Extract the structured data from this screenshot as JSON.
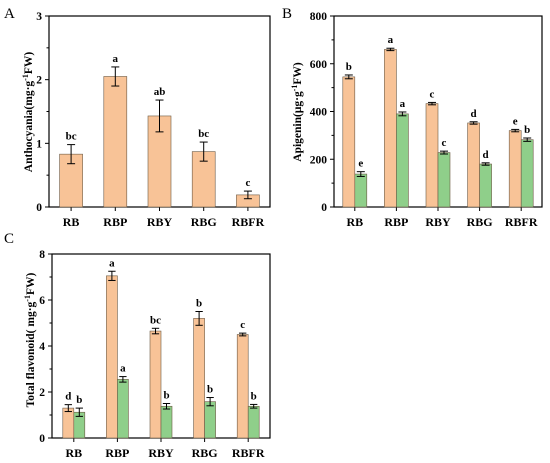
{
  "colors": {
    "series_a": "#f8c397",
    "series_b": "#8fcf8a",
    "bar_stroke": "#6d5a44",
    "axis": "#000000"
  },
  "chart_data": [
    {
      "panel": "A",
      "type": "bar",
      "categories": [
        "RB",
        "RBP",
        "RBY",
        "RBG",
        "RBFR"
      ],
      "ylabel_main": "Anthocyania(mg·g",
      "ylabel_sup": "-1",
      "ylabel_tail": "FW)",
      "ylim": [
        0,
        3
      ],
      "yticks": [
        "0",
        "1",
        "2",
        "3"
      ],
      "series": [
        {
          "values": [
            0.83,
            2.05,
            1.43,
            0.87,
            0.19
          ],
          "errors": [
            0.15,
            0.15,
            0.25,
            0.15,
            0.06
          ],
          "letters": [
            "bc",
            "a",
            "ab",
            "bc",
            "c"
          ]
        }
      ]
    },
    {
      "panel": "B",
      "type": "bar",
      "categories": [
        "RB",
        "RBP",
        "RBY",
        "RBG",
        "RBFR"
      ],
      "ylabel_main": "Apigenin(μg·g",
      "ylabel_sup": "-1",
      "ylabel_tail": "FW)",
      "ylim": [
        0,
        800
      ],
      "yticks": [
        "0",
        "200",
        "400",
        "600",
        "800"
      ],
      "series": [
        {
          "values": [
            545,
            660,
            433,
            352,
            320
          ],
          "errors": [
            8,
            5,
            5,
            5,
            5
          ],
          "letters": [
            "b",
            "a",
            "c",
            "d",
            "e"
          ]
        },
        {
          "values": [
            138,
            390,
            228,
            180,
            282
          ],
          "errors": [
            10,
            8,
            6,
            5,
            7
          ],
          "letters": [
            "e",
            "a",
            "c",
            "d",
            "b"
          ]
        }
      ]
    },
    {
      "panel": "C",
      "type": "bar",
      "categories": [
        "RB",
        "RBP",
        "RBY",
        "RBG",
        "RBFR"
      ],
      "ylabel_main": "Total flavonoid( mg·g",
      "ylabel_sup": "-1",
      "ylabel_tail": "FW)",
      "ylim": [
        0,
        8
      ],
      "yticks": [
        "0",
        "2",
        "4",
        "6",
        "8"
      ],
      "series": [
        {
          "values": [
            1.3,
            7.05,
            4.65,
            5.2,
            4.5
          ],
          "errors": [
            0.15,
            0.2,
            0.12,
            0.3,
            0.06
          ],
          "letters": [
            "d",
            "a",
            "bc",
            "b",
            "c"
          ]
        },
        {
          "values": [
            1.12,
            2.55,
            1.38,
            1.58,
            1.38
          ],
          "errors": [
            0.18,
            0.12,
            0.12,
            0.18,
            0.08
          ],
          "letters": [
            "b",
            "a",
            "b",
            "b",
            "b"
          ]
        }
      ]
    }
  ]
}
